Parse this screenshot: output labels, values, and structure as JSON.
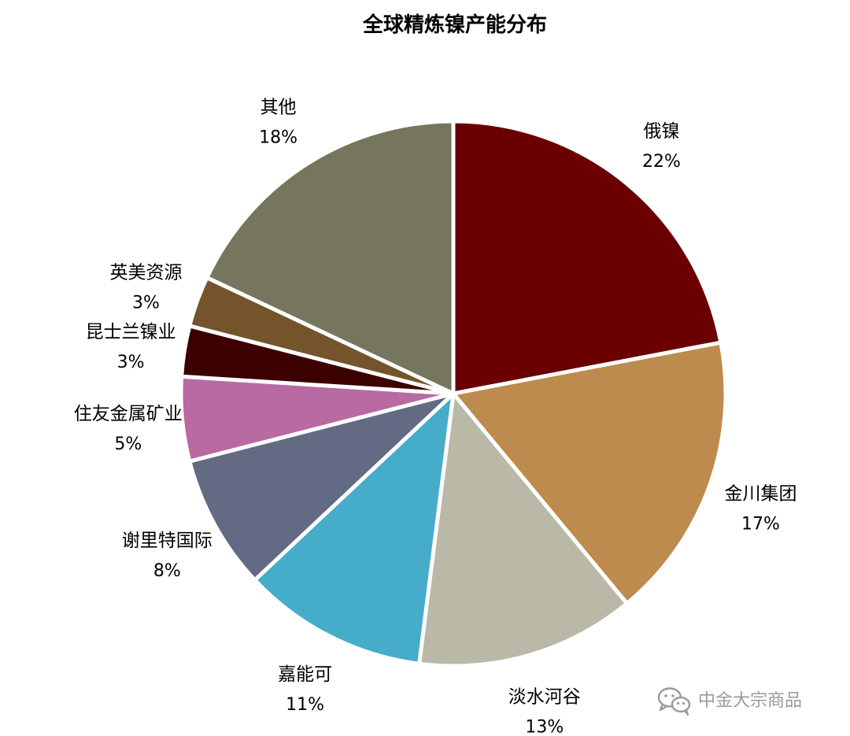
{
  "chart_data": {
    "type": "pie",
    "title": "全球精炼镍产能分布",
    "slices": [
      {
        "label": "俄镍",
        "value": 22,
        "pct_label": "22%",
        "color": "#6A0000"
      },
      {
        "label": "金川集团",
        "value": 17,
        "pct_label": "17%",
        "color": "#BD8B4D"
      },
      {
        "label": "淡水河谷",
        "value": 13,
        "pct_label": "13%",
        "color": "#BAB9A7"
      },
      {
        "label": "嘉能可",
        "value": 11,
        "pct_label": "11%",
        "color": "#45ACCA"
      },
      {
        "label": "谢里特国际",
        "value": 8,
        "pct_label": "8%",
        "color": "#626A84"
      },
      {
        "label": "住友金属矿业",
        "value": 5,
        "pct_label": "5%",
        "color": "#B96AA2"
      },
      {
        "label": "昆士兰镍业",
        "value": 3,
        "pct_label": "3%",
        "color": "#3D0000"
      },
      {
        "label": "英美资源",
        "value": 3,
        "pct_label": "3%",
        "color": "#74542A"
      },
      {
        "label": "其他",
        "value": 18,
        "pct_label": "18%",
        "color": "#76765E"
      }
    ],
    "start_angle": "12 o'clock",
    "direction": "clockwise",
    "slice_border_color": "#FFFFFF"
  },
  "watermark": {
    "text": "中金大宗商品",
    "icon": "wechat-icon"
  }
}
